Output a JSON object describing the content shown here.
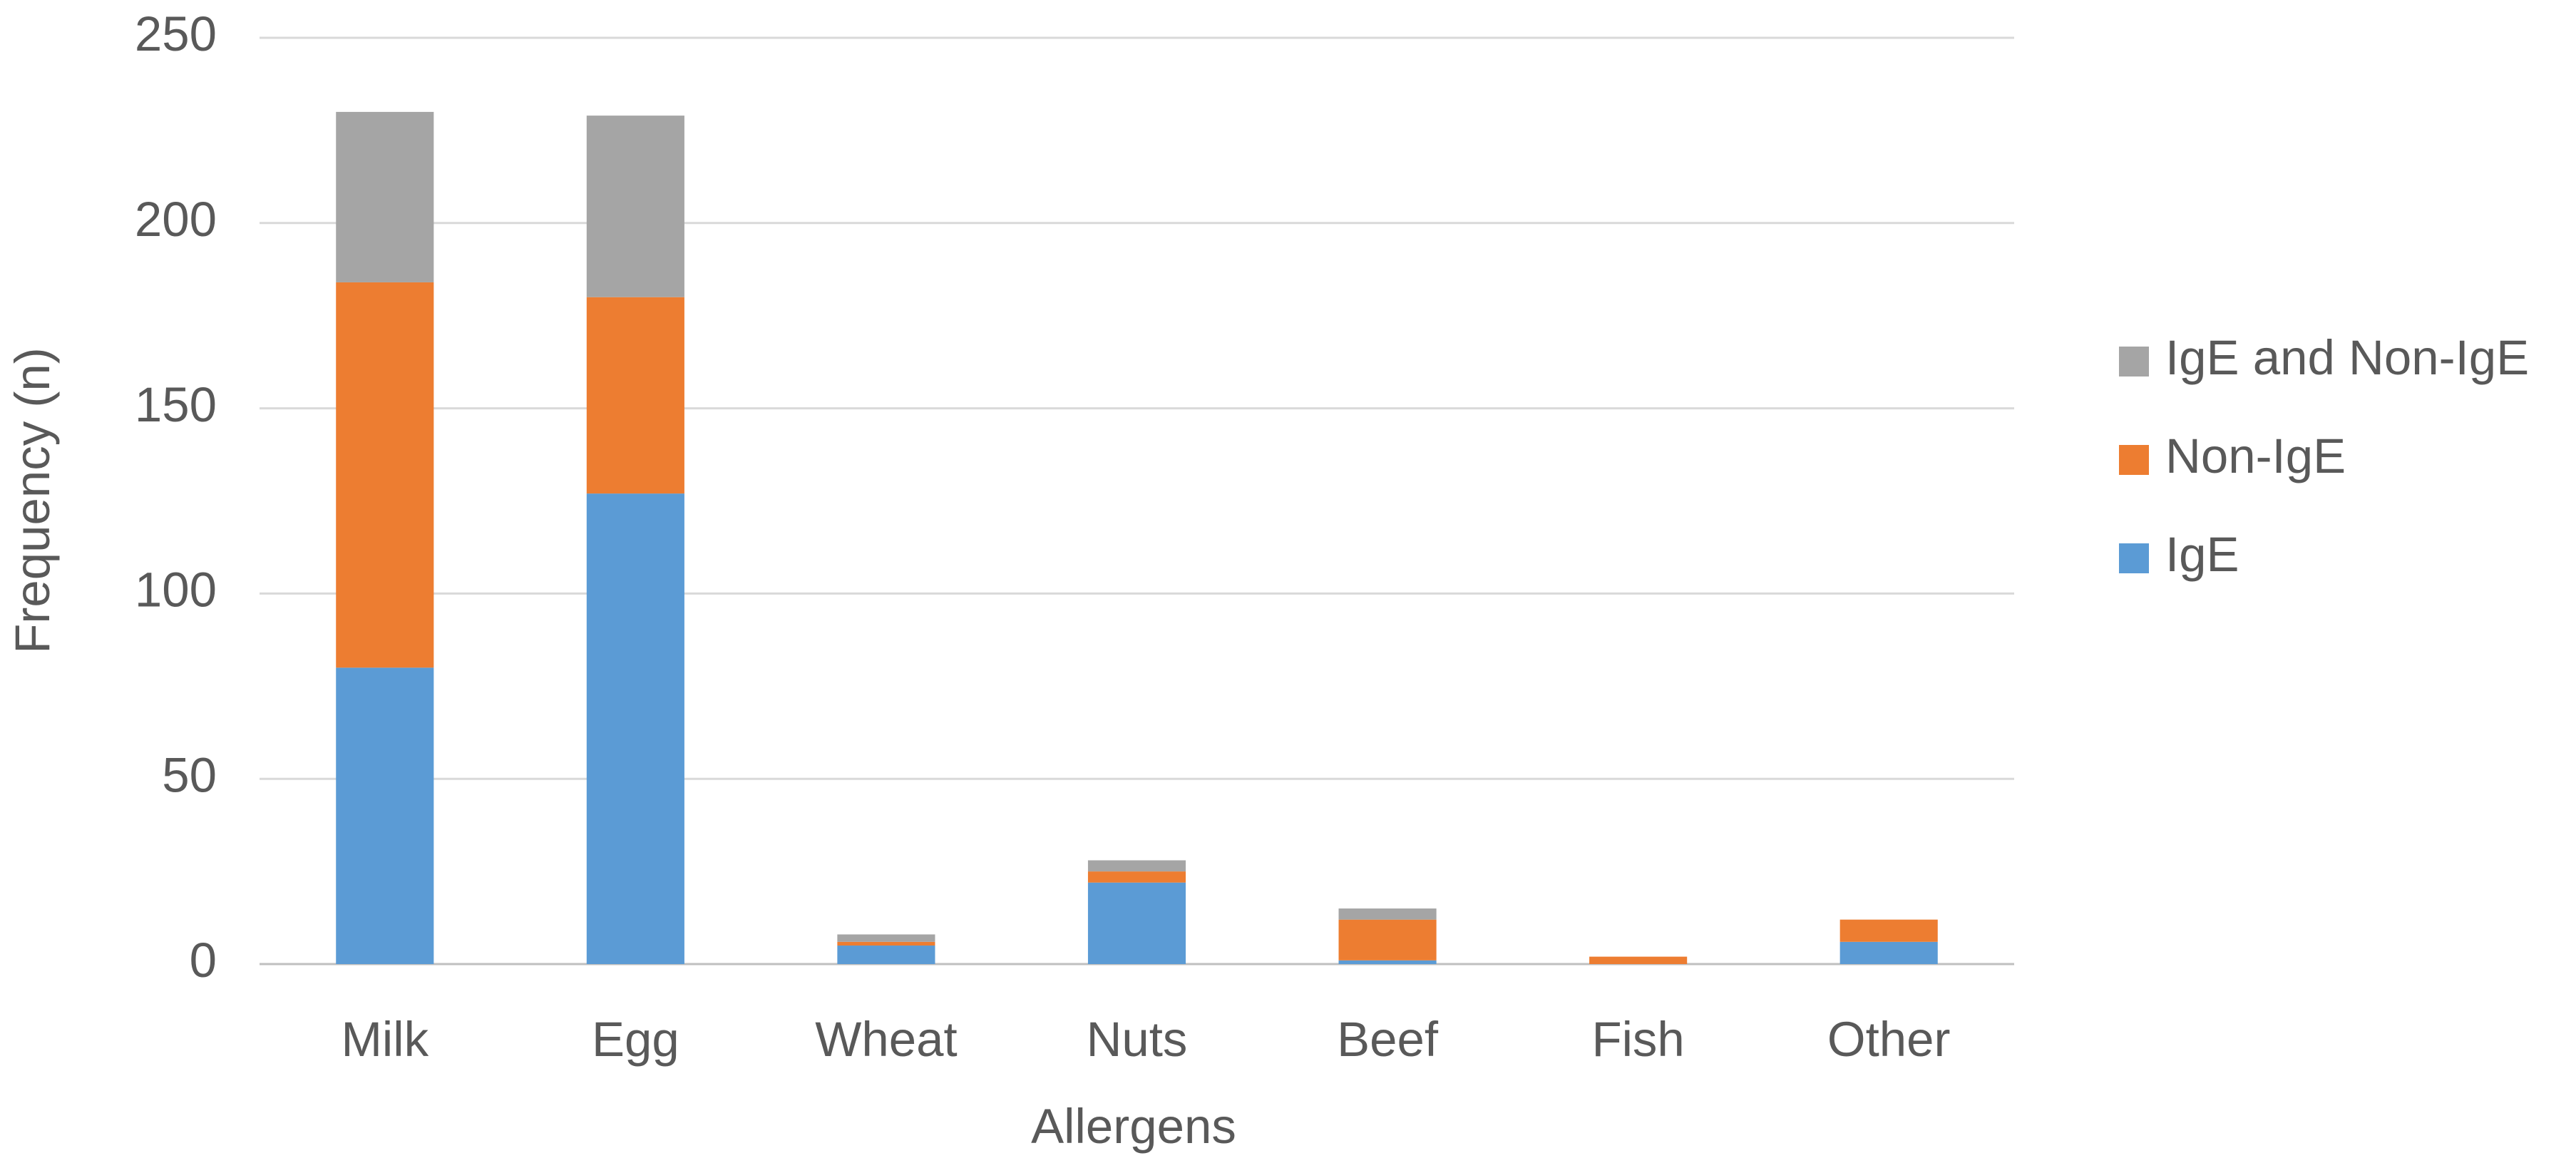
{
  "chart_data": {
    "type": "stacked_bar",
    "x_label": "Allergens",
    "y_label": "Frequency (n)",
    "categories": [
      "Milk",
      "Egg",
      "Wheat",
      "Nuts",
      "Beef",
      "Fish",
      "Other"
    ],
    "series": [
      {
        "name": "IgE",
        "color": "#5b9bd5",
        "values": [
          80,
          127,
          5,
          22,
          1,
          0,
          6
        ]
      },
      {
        "name": "Non-IgE",
        "color": "#ed7d31",
        "values": [
          104,
          53,
          1,
          3,
          11,
          2,
          6
        ]
      },
      {
        "name": "IgE and Non-IgE",
        "color": "#a5a5a5",
        "values": [
          46,
          49,
          2,
          3,
          3,
          0,
          0
        ]
      }
    ],
    "ylim": [
      0,
      250
    ],
    "yticks": [
      0,
      50,
      100,
      150,
      200,
      250
    ],
    "grid": true,
    "legend": "right"
  }
}
